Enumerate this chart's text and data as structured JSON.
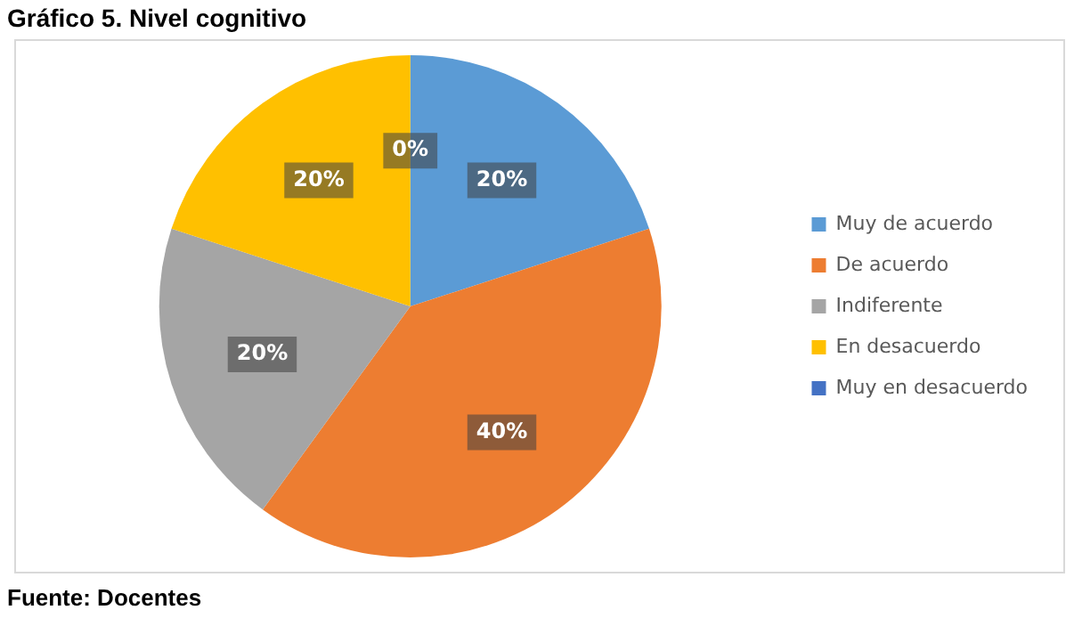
{
  "chart_data": {
    "type": "pie",
    "title": "Gráfico 5. Nivel cognitivo",
    "categories": [
      "Muy de acuerdo",
      "De acuerdo",
      "Indiferente",
      "En desacuerdo",
      "Muy en desacuerdo"
    ],
    "values": [
      20,
      40,
      20,
      20,
      0
    ],
    "colors": [
      "#5b9bd5",
      "#ed7d31",
      "#a5a5a5",
      "#ffc000",
      "#4472c4"
    ],
    "value_labels": [
      "20%",
      "40%",
      "20%",
      "20%",
      "0%"
    ],
    "legend": "right",
    "annotations": [
      "Fuente: Docentes"
    ]
  }
}
